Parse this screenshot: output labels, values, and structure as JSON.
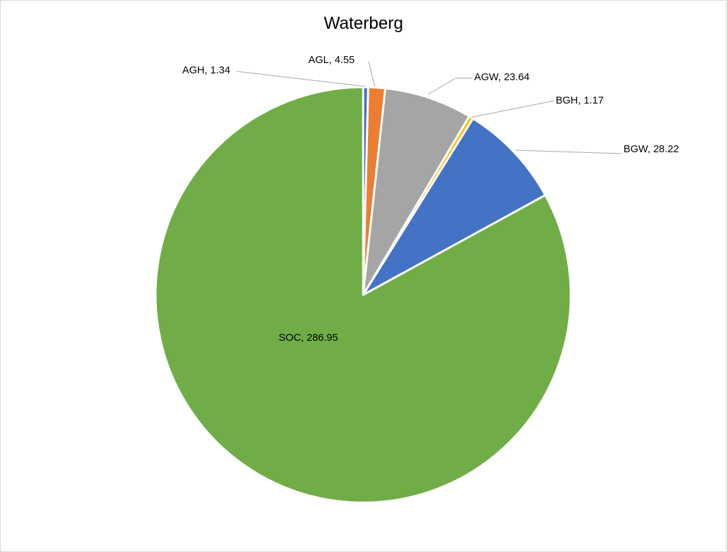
{
  "chart_data": {
    "type": "pie",
    "title": "Waterberg",
    "slices": [
      {
        "name": "AGH",
        "value": 1.34,
        "label": "AGH, 1.34",
        "color": "#4472C4"
      },
      {
        "name": "AGL",
        "value": 4.55,
        "label": "AGL, 4.55",
        "color": "#ED7D31"
      },
      {
        "name": "AGW",
        "value": 23.64,
        "label": "AGW, 23.64",
        "color": "#A5A5A5"
      },
      {
        "name": "BGH",
        "value": 1.17,
        "label": "BGH, 1.17",
        "color": "#FFC000"
      },
      {
        "name": "BGW",
        "value": 28.22,
        "label": "BGW, 28.22",
        "color": "#4472C4"
      },
      {
        "name": "SOC",
        "value": 286.95,
        "label": "SOC, 286.95",
        "color": "#70AD47"
      }
    ],
    "legend": "none"
  }
}
